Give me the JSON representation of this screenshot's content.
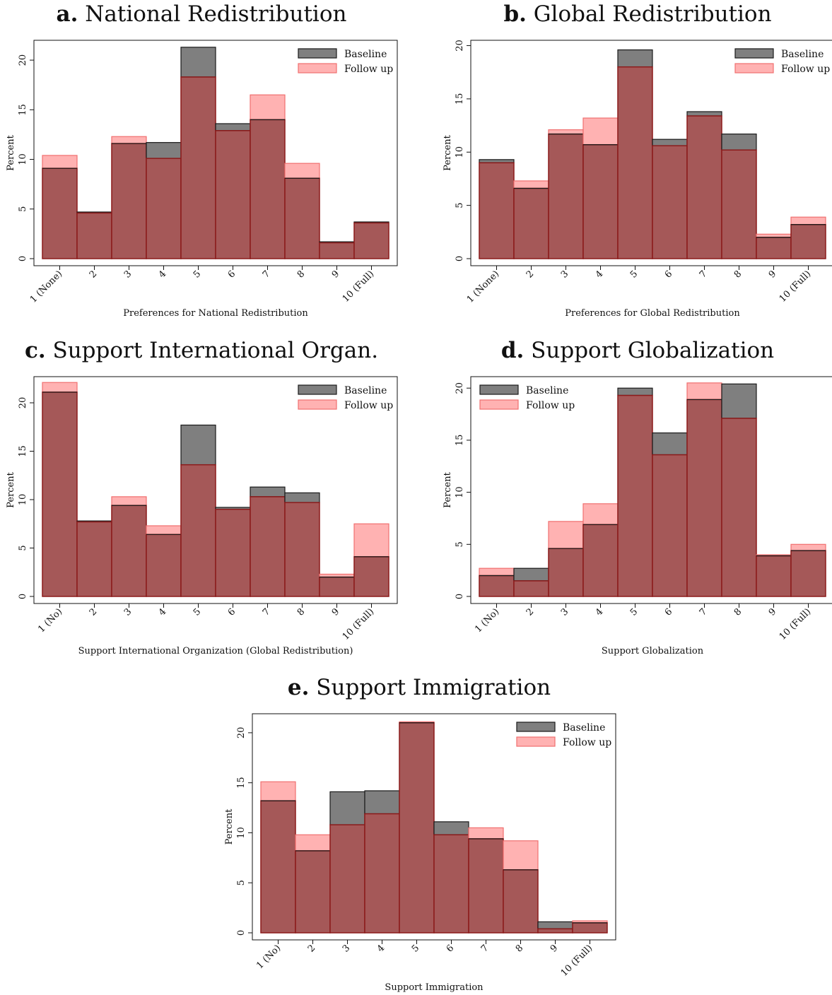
{
  "colors": {
    "baseline_fill": "#7f7f7f",
    "baseline_edge": "#1a1a1a",
    "followup_fill": "#ffb2b2",
    "followup_edge": "#f07070",
    "overlap": "#a55858",
    "overlap_edge": "#8b1a1a"
  },
  "chart_data": [
    {
      "type": "bar",
      "panel_label": "a.",
      "title": "National Redistribution",
      "xlabel": "Preferences for National Redistribution",
      "ylabel": "Percent",
      "ylim": [
        0,
        22
      ],
      "yticks": [
        0,
        5,
        10,
        15,
        20
      ],
      "legend_position": "top-right",
      "categories": [
        "1 (None)",
        "2",
        "3",
        "4",
        "5",
        "6",
        "7",
        "8",
        "9",
        "10 (Full)"
      ],
      "series": [
        {
          "name": "Baseline",
          "values": [
            9.1,
            4.7,
            11.6,
            11.7,
            21.3,
            13.6,
            14.0,
            8.1,
            1.7,
            3.7
          ]
        },
        {
          "name": "Follow up",
          "values": [
            10.4,
            4.6,
            12.3,
            10.1,
            18.3,
            12.9,
            16.5,
            9.6,
            1.6,
            3.6
          ]
        }
      ]
    },
    {
      "type": "bar",
      "panel_label": "b.",
      "title": "Global Redistribution",
      "xlabel": "Preferences for Global Redistribution",
      "ylabel": "Percent",
      "ylim": [
        0,
        20.5
      ],
      "yticks": [
        0,
        5,
        10,
        15,
        20
      ],
      "legend_position": "top-right",
      "categories": [
        "1 (None)",
        "2",
        "3",
        "4",
        "5",
        "6",
        "7",
        "8",
        "9",
        "10 (Full)"
      ],
      "series": [
        {
          "name": "Baseline",
          "values": [
            9.3,
            6.6,
            11.7,
            10.7,
            19.6,
            11.2,
            13.8,
            11.7,
            2.0,
            3.2
          ]
        },
        {
          "name": "Follow up",
          "values": [
            9.0,
            7.3,
            12.1,
            13.2,
            18.0,
            10.6,
            13.4,
            10.2,
            2.3,
            3.9
          ]
        }
      ]
    },
    {
      "type": "bar",
      "panel_label": "c.",
      "title": "Support International Organ.",
      "xlabel": "Support International Organization (Global Redistribution)",
      "ylabel": "Percent",
      "ylim": [
        0,
        22.7
      ],
      "yticks": [
        0,
        5,
        10,
        15,
        20
      ],
      "legend_position": "top-right",
      "categories": [
        "1 (No)",
        "2",
        "3",
        "4",
        "5",
        "6",
        "7",
        "8",
        "9",
        "10 (Full)"
      ],
      "series": [
        {
          "name": "Baseline",
          "values": [
            21.1,
            7.8,
            9.4,
            6.4,
            17.7,
            9.2,
            11.3,
            10.7,
            2.0,
            4.1
          ]
        },
        {
          "name": "Follow up",
          "values": [
            22.1,
            7.7,
            10.3,
            7.3,
            13.6,
            9.0,
            10.3,
            9.7,
            2.3,
            7.5
          ]
        }
      ]
    },
    {
      "type": "bar",
      "panel_label": "d.",
      "title": "Support Globalization",
      "xlabel": "Support Globalization",
      "ylabel": "Percent",
      "ylim": [
        0,
        21.1
      ],
      "yticks": [
        0,
        5,
        10,
        15,
        20
      ],
      "legend_position": "top-left",
      "categories": [
        "1 (No)",
        "2",
        "3",
        "4",
        "5",
        "6",
        "7",
        "8",
        "9",
        "10 (Full)"
      ],
      "series": [
        {
          "name": "Baseline",
          "values": [
            2.0,
            2.7,
            4.6,
            6.9,
            20.0,
            15.7,
            18.9,
            20.4,
            3.9,
            4.4
          ]
        },
        {
          "name": "Follow up",
          "values": [
            2.7,
            1.5,
            7.2,
            8.9,
            19.3,
            13.6,
            20.5,
            17.1,
            4.0,
            5.0
          ]
        }
      ]
    },
    {
      "type": "bar",
      "panel_label": "e.",
      "title": "Support Immigration",
      "xlabel": "Support Immigration",
      "ylabel": "Percent",
      "ylim": [
        0,
        21.9
      ],
      "yticks": [
        0,
        5,
        10,
        15,
        20
      ],
      "legend_position": "top-right",
      "categories": [
        "1 (No)",
        "2",
        "3",
        "4",
        "5",
        "6",
        "7",
        "8",
        "9",
        "10 (Full)"
      ],
      "series": [
        {
          "name": "Baseline",
          "values": [
            13.2,
            8.2,
            14.1,
            14.2,
            21.0,
            11.1,
            9.4,
            6.3,
            1.1,
            1.0
          ]
        },
        {
          "name": "Follow up",
          "values": [
            15.1,
            9.8,
            10.8,
            11.9,
            21.1,
            9.8,
            10.5,
            9.2,
            0.4,
            1.2
          ]
        }
      ]
    }
  ]
}
